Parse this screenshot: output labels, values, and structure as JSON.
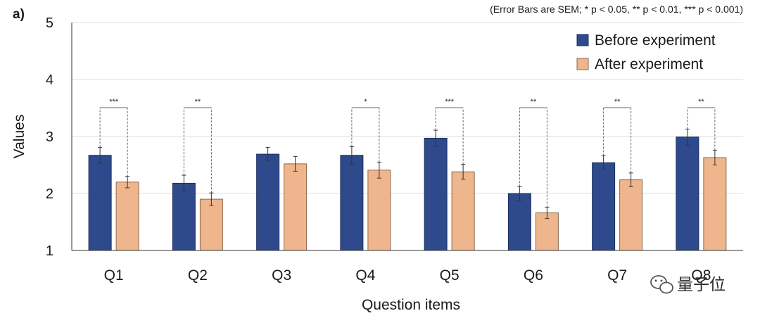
{
  "chart_data": {
    "type": "bar",
    "panel_label": "a)",
    "note": "(Error Bars are SEM; * p < 0.05, ** p < 0.01, *** p < 0.001)",
    "xlabel": "Question items",
    "ylabel": "Values",
    "ylim": [
      1,
      5
    ],
    "yticks": [
      1,
      2,
      3,
      4,
      5
    ],
    "categories": [
      "Q1",
      "Q2",
      "Q3",
      "Q4",
      "Q5",
      "Q6",
      "Q7",
      "Q8"
    ],
    "series": [
      {
        "name": "Before experiment",
        "color": "#2E4A8C",
        "values": [
          2.67,
          2.18,
          2.69,
          2.67,
          2.97,
          2.0,
          2.54,
          2.99
        ],
        "errors": [
          0.14,
          0.14,
          0.12,
          0.15,
          0.14,
          0.12,
          0.12,
          0.14
        ]
      },
      {
        "name": "After experiment",
        "color": "#EFB58C",
        "values": [
          2.2,
          1.9,
          2.52,
          2.41,
          2.38,
          1.66,
          2.24,
          2.63
        ],
        "errors": [
          0.1,
          0.11,
          0.13,
          0.14,
          0.13,
          0.1,
          0.12,
          0.13
        ]
      }
    ],
    "significance": [
      "***",
      "**",
      "",
      "*",
      "***",
      "**",
      "**",
      "**"
    ],
    "legend_position": "top-right"
  },
  "watermark": {
    "text": "量子位",
    "icon": "wechat-icon"
  }
}
